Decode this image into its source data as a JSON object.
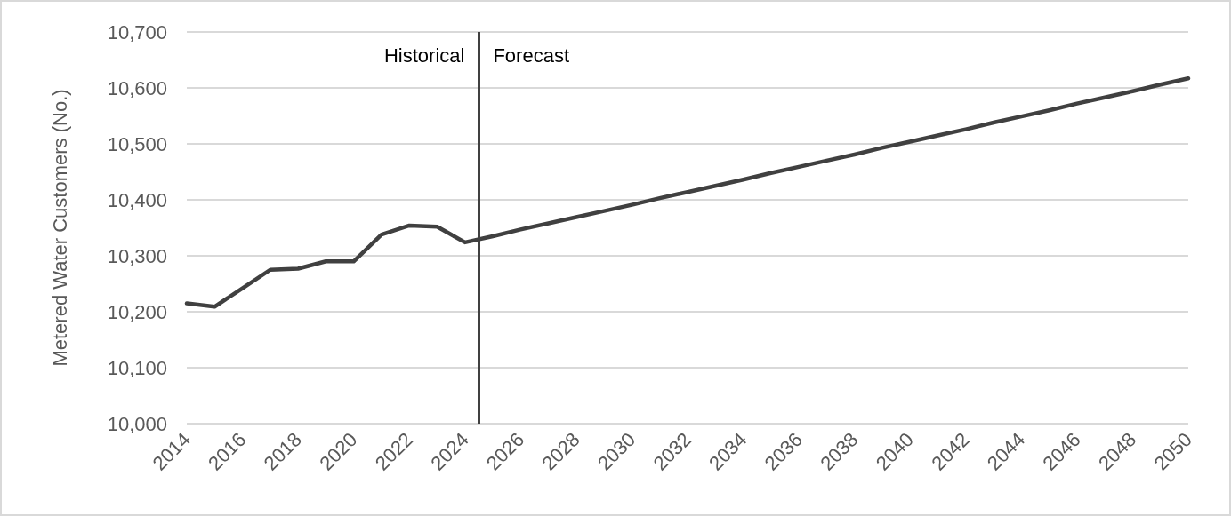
{
  "chart_data": {
    "type": "line",
    "ylabel": "Metered Water Customers (No.)",
    "x": [
      2014,
      2015,
      2016,
      2017,
      2018,
      2019,
      2020,
      2021,
      2022,
      2023,
      2024,
      2025,
      2026,
      2027,
      2028,
      2029,
      2030,
      2031,
      2032,
      2033,
      2034,
      2035,
      2036,
      2037,
      2038,
      2039,
      2040,
      2041,
      2042,
      2043,
      2044,
      2045,
      2046,
      2047,
      2048,
      2049,
      2050
    ],
    "series": [
      {
        "color": "#404040",
        "values": [
          10215,
          10209,
          10242,
          10275,
          10277,
          10290,
          10290,
          10338,
          10354,
          10352,
          10324,
          10335,
          10347,
          10358,
          10369,
          10380,
          10391,
          10403,
          10414,
          10425,
          10436,
          10448,
          10459,
          10470,
          10481,
          10493,
          10504,
          10515,
          10526,
          10538,
          10549,
          10560,
          10572,
          10583,
          10594,
          10606,
          10617
        ]
      }
    ],
    "xlim": [
      2014,
      2050
    ],
    "xticks": [
      2014,
      2016,
      2018,
      2020,
      2022,
      2024,
      2026,
      2028,
      2030,
      2032,
      2034,
      2036,
      2038,
      2040,
      2042,
      2044,
      2046,
      2048,
      2050
    ],
    "ylim": [
      10000,
      10700
    ],
    "yticks": [
      {
        "value": 10000,
        "label": "10,000"
      },
      {
        "value": 10100,
        "label": "10,100"
      },
      {
        "value": 10200,
        "label": "10,200"
      },
      {
        "value": 10300,
        "label": "10,300"
      },
      {
        "value": 10400,
        "label": "10,400"
      },
      {
        "value": 10500,
        "label": "10,500"
      },
      {
        "value": 10600,
        "label": "10,600"
      },
      {
        "value": 10700,
        "label": "10,700"
      }
    ],
    "grid": "y",
    "marker": "none",
    "line_style": "solid",
    "ref_lines": [
      {
        "axis": "x",
        "value": 2024.5,
        "color": "#404040"
      }
    ],
    "annotations": [
      "Historical",
      "Forecast"
    ]
  }
}
